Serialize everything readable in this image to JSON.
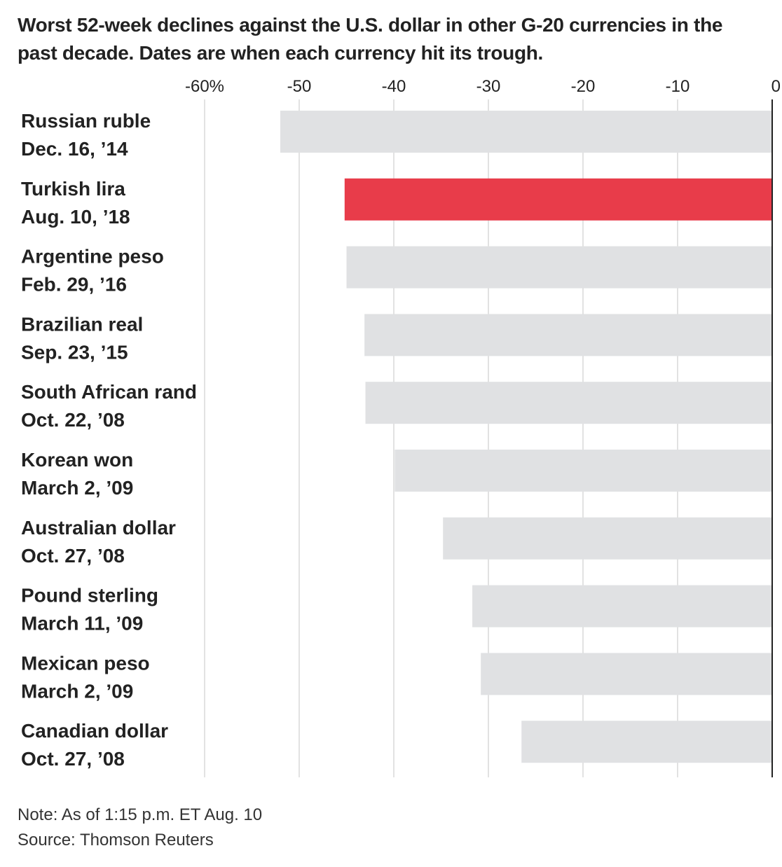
{
  "title": "Worst 52-week declines against the U.S. dollar in other G-20 currencies in the past decade. Dates are when each currency hit its trough.",
  "note": "Note: As of 1:15 p.m. ET Aug. 10",
  "source": "Source: Thomson Reuters",
  "chart_data": {
    "type": "bar",
    "orientation": "horizontal",
    "title": "Worst 52-week declines against the U.S. dollar in other G-20 currencies in the past decade. Dates are when each currency hit its trough.",
    "xlabel": "",
    "ylabel": "",
    "xlim": [
      -60,
      0
    ],
    "grid": true,
    "ticks": [
      -60,
      -50,
      -40,
      -30,
      -20,
      -10,
      0
    ],
    "tick_labels": [
      "-60%",
      "-50",
      "-40",
      "-30",
      "-20",
      "-10",
      "0"
    ],
    "categories": [
      "Russian ruble",
      "Turkish lira",
      "Argentine peso",
      "Brazilian real",
      "South African rand",
      "Korean won",
      "Australian dollar",
      "Pound sterling",
      "Mexican peso",
      "Canadian dollar"
    ],
    "dates": [
      "Dec. 16, ’14",
      "Aug. 10, ’18",
      "Feb. 29, ’16",
      "Sep. 23, ’15",
      "Oct. 22, ’08",
      "March 2, ’09",
      "Oct. 27, ’08",
      "March 11, ’09",
      "March 2, ’09",
      "Oct. 27, ’08"
    ],
    "values": [
      -52.0,
      -45.2,
      -45.0,
      -43.1,
      -43.0,
      -39.9,
      -34.8,
      -31.7,
      -30.8,
      -26.5
    ],
    "highlight": "Turkish lira",
    "colors": {
      "default": "#e0e1e3",
      "highlight": "#e83c4a",
      "grid": "#e2e2e2",
      "axis": "#222222"
    }
  }
}
